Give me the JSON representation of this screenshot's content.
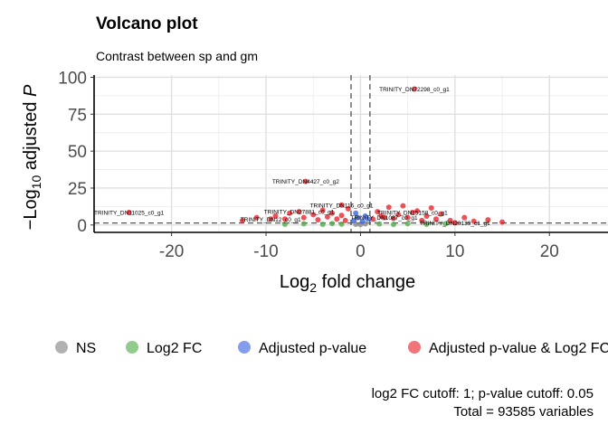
{
  "chart_data": {
    "type": "scatter",
    "title": "Volcano plot",
    "subtitle": "Contrast between sp and gm",
    "xlabel": {
      "base": "Log",
      "sub": "2",
      "rest": " fold change"
    },
    "ylabel": {
      "prefix": "−Log",
      "sub": "10",
      "rest": " adjusted ",
      "ital": "P"
    },
    "xlim": [
      -28.2,
      26.2
    ],
    "ylim": [
      -5,
      101.5
    ],
    "x_ticks": [
      -20,
      -10,
      0,
      10,
      20
    ],
    "y_ticks": [
      0,
      25,
      50,
      75,
      100
    ],
    "x_tick_labels": [
      "-20",
      "-10",
      "0",
      "10",
      "20"
    ],
    "y_tick_labels": [
      "0",
      "25",
      "50",
      "75",
      "100"
    ],
    "grid": true,
    "fc_cutoff": [
      -1,
      1
    ],
    "p_cutoff_line_y": 1.3,
    "colors": {
      "NS": "#7f7f7f",
      "Log2 FC": "#49a941",
      "Adjusted p-value": "#2e5ce0",
      "Adjusted p-value & Log2 FC": "#e8171f"
    },
    "legend": {
      "position": "bottom",
      "entries": [
        {
          "name": "NS"
        },
        {
          "name": "Log2 FC"
        },
        {
          "name": "Adjusted p-value"
        },
        {
          "name": "Adjusted p-value & Log2 FC"
        }
      ]
    },
    "labeled_points": [
      {
        "label": "TRINITY_DN72298_c0_g1",
        "x": 5.7,
        "y": 92,
        "group": "Adjusted p-value & Log2 FC"
      },
      {
        "label": "TRINITY_DN4427_c0_g2",
        "x": -5.8,
        "y": 29.5,
        "group": "Adjusted p-value & Log2 FC"
      },
      {
        "label": "TRINITY_DN11025_c0_g1",
        "x": -24.5,
        "y": 8.5,
        "group": "Adjusted p-value & Log2 FC"
      },
      {
        "label": "TRINITY_DN116_c0_g1",
        "x": -2,
        "y": 13.5,
        "group": "Adjusted p-value & Log2 FC"
      },
      {
        "label": "TRINITY_DN27881_c0_g1",
        "x": -6.5,
        "y": 9,
        "group": "Adjusted p-value & Log2 FC"
      },
      {
        "label": "TRINITY_DN15158_c0_g1",
        "x": 5.5,
        "y": 8.5,
        "group": "Adjusted p-value & Log2 FC"
      },
      {
        "label": "TRINITY_DN12_c0_g1",
        "x": -9.5,
        "y": 4,
        "group": "Adjusted p-value & Log2 FC"
      },
      {
        "label": "TRINITY_DN1087_c0_g1",
        "x": 2.5,
        "y": 5,
        "group": "Adjusted p-value & Log2 FC"
      },
      {
        "label": "TRINITY_DN20139_c1_g1",
        "x": 10,
        "y": 1.5,
        "group": "Adjusted p-value & Log2 FC"
      }
    ],
    "points": [
      {
        "x": -12.5,
        "y": 3,
        "group": "Adjusted p-value & Log2 FC"
      },
      {
        "x": -11,
        "y": 5,
        "group": "Adjusted p-value & Log2 FC"
      },
      {
        "x": -9,
        "y": 6,
        "group": "Adjusted p-value & Log2 FC"
      },
      {
        "x": -8,
        "y": 4,
        "group": "Adjusted p-value & Log2 FC"
      },
      {
        "x": -7.5,
        "y": 8,
        "group": "Adjusted p-value & Log2 FC"
      },
      {
        "x": -6,
        "y": 5,
        "group": "Adjusted p-value & Log2 FC"
      },
      {
        "x": -5,
        "y": 7,
        "group": "Adjusted p-value & Log2 FC"
      },
      {
        "x": -4.5,
        "y": 3.5,
        "group": "Adjusted p-value & Log2 FC"
      },
      {
        "x": -4,
        "y": 10,
        "group": "Adjusted p-value & Log2 FC"
      },
      {
        "x": -3.5,
        "y": 5.5,
        "group": "Adjusted p-value & Log2 FC"
      },
      {
        "x": -3,
        "y": 8,
        "group": "Adjusted p-value & Log2 FC"
      },
      {
        "x": -2.5,
        "y": 4,
        "group": "Adjusted p-value & Log2 FC"
      },
      {
        "x": -2,
        "y": 6.5,
        "group": "Adjusted p-value & Log2 FC"
      },
      {
        "x": -1.6,
        "y": 3,
        "group": "Adjusted p-value & Log2 FC"
      },
      {
        "x": -1.3,
        "y": 11,
        "group": "Adjusted p-value & Log2 FC"
      },
      {
        "x": 1.3,
        "y": 4,
        "group": "Adjusted p-value & Log2 FC"
      },
      {
        "x": 1.8,
        "y": 9,
        "group": "Adjusted p-value & Log2 FC"
      },
      {
        "x": 2.2,
        "y": 6,
        "group": "Adjusted p-value & Log2 FC"
      },
      {
        "x": 3,
        "y": 12,
        "group": "Adjusted p-value & Log2 FC"
      },
      {
        "x": 3.5,
        "y": 4.5,
        "group": "Adjusted p-value & Log2 FC"
      },
      {
        "x": 4,
        "y": 7,
        "group": "Adjusted p-value & Log2 FC"
      },
      {
        "x": 4.5,
        "y": 13,
        "group": "Adjusted p-value & Log2 FC"
      },
      {
        "x": 5,
        "y": 5,
        "group": "Adjusted p-value & Log2 FC"
      },
      {
        "x": 6,
        "y": 9.5,
        "group": "Adjusted p-value & Log2 FC"
      },
      {
        "x": 6.5,
        "y": 3,
        "group": "Adjusted p-value & Log2 FC"
      },
      {
        "x": 7,
        "y": 6,
        "group": "Adjusted p-value & Log2 FC"
      },
      {
        "x": 7.5,
        "y": 11.5,
        "group": "Adjusted p-value & Log2 FC"
      },
      {
        "x": 8,
        "y": 4,
        "group": "Adjusted p-value & Log2 FC"
      },
      {
        "x": 8.5,
        "y": 7.5,
        "group": "Adjusted p-value & Log2 FC"
      },
      {
        "x": 9.5,
        "y": 3,
        "group": "Adjusted p-value & Log2 FC"
      },
      {
        "x": 11,
        "y": 5,
        "group": "Adjusted p-value & Log2 FC"
      },
      {
        "x": 12,
        "y": 2.5,
        "group": "Adjusted p-value & Log2 FC"
      },
      {
        "x": 13.5,
        "y": 3.5,
        "group": "Adjusted p-value & Log2 FC"
      },
      {
        "x": 15,
        "y": 2,
        "group": "Adjusted p-value & Log2 FC"
      },
      {
        "x": -0.7,
        "y": 3,
        "group": "Adjusted p-value"
      },
      {
        "x": -0.3,
        "y": 5,
        "group": "Adjusted p-value"
      },
      {
        "x": 0.2,
        "y": 2.5,
        "group": "Adjusted p-value"
      },
      {
        "x": 0.5,
        "y": 6,
        "group": "Adjusted p-value"
      },
      {
        "x": 0.8,
        "y": 4,
        "group": "Adjusted p-value"
      },
      {
        "x": -0.5,
        "y": 8,
        "group": "Adjusted p-value"
      },
      {
        "x": -8,
        "y": 0.5,
        "group": "Log2 FC"
      },
      {
        "x": -6,
        "y": 0.8,
        "group": "Log2 FC"
      },
      {
        "x": -4,
        "y": 0.4,
        "group": "Log2 FC"
      },
      {
        "x": -3,
        "y": 1,
        "group": "Log2 FC"
      },
      {
        "x": -2,
        "y": 0.6,
        "group": "Log2 FC"
      },
      {
        "x": 2,
        "y": 0.7,
        "group": "Log2 FC"
      },
      {
        "x": 3.5,
        "y": 0.4,
        "group": "Log2 FC"
      },
      {
        "x": 5,
        "y": 0.9,
        "group": "Log2 FC"
      },
      {
        "x": 7,
        "y": 0.5,
        "group": "Log2 FC"
      },
      {
        "x": 9,
        "y": 0.8,
        "group": "Log2 FC"
      },
      {
        "x": -0.5,
        "y": 0.5,
        "group": "NS"
      },
      {
        "x": 0,
        "y": 0.3,
        "group": "NS"
      },
      {
        "x": 0.5,
        "y": 0.8,
        "group": "NS"
      }
    ],
    "caption": {
      "line1": "log2 FC cutoff: 1; p-value cutoff: 0.05",
      "line2": "Total = 93585 variables"
    }
  }
}
